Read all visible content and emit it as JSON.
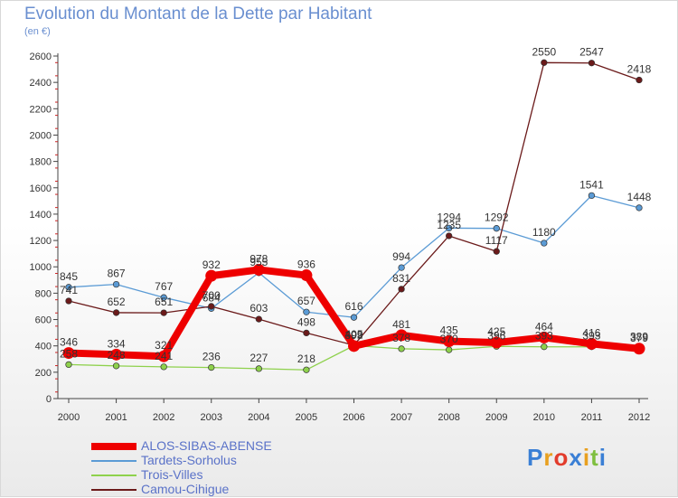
{
  "header": {
    "title": "Evolution du Montant de la Dette par Habitant",
    "subtitle": "(en €)"
  },
  "brand": {
    "letters": [
      "P",
      "r",
      "o",
      "x",
      "i",
      "t",
      "i"
    ],
    "colors": [
      "#3a7fd5",
      "#e8a020",
      "#e23c2c",
      "#3a7fd5",
      "#e8a020",
      "#7fbf3f",
      "#3a7fd5"
    ]
  },
  "chart_data": {
    "type": "line",
    "title": "Evolution du Montant de la Dette par Habitant",
    "subtitle": "(en €)",
    "x": [
      "2000",
      "2001",
      "2002",
      "2003",
      "2004",
      "2005",
      "2006",
      "2007",
      "2008",
      "2009",
      "2010",
      "2011",
      "2012"
    ],
    "ylim": [
      0,
      2600
    ],
    "y_ticks": [
      0,
      200,
      400,
      600,
      800,
      1000,
      1200,
      1400,
      1600,
      1800,
      2000,
      2200,
      2400,
      2600
    ],
    "grid": false,
    "legend_position": "bottom-left",
    "series": [
      {
        "name": "ALOS-SIBAS-ABENSE",
        "color": "#ee0000",
        "values": [
          346,
          334,
          321,
          932,
          978,
          936,
          399,
          481,
          435,
          425,
          464,
          416,
          379
        ]
      },
      {
        "name": "Tardets-Sorholus",
        "color": "#5b9bd5",
        "values": [
          845,
          867,
          767,
          684,
          955,
          657,
          616,
          994,
          1294,
          1292,
          1180,
          1541,
          1448
        ]
      },
      {
        "name": "Trois-Villes",
        "color": "#8ed14c",
        "values": [
          258,
          248,
          241,
          236,
          227,
          218,
          402,
          378,
          370,
          396,
          393,
          393,
          389
        ]
      },
      {
        "name": "Camou-Cihigue",
        "color": "#6b1a1a",
        "values": [
          741,
          652,
          651,
          700,
          603,
          498,
          405,
          831,
          1235,
          1117,
          2550,
          2547,
          2418
        ]
      }
    ],
    "data_labels": [
      [
        346,
        334,
        321,
        932,
        978,
        936,
        399,
        481,
        435,
        425,
        464,
        416,
        379
      ],
      [
        845,
        867,
        767,
        684,
        955,
        657,
        616,
        994,
        1294,
        1292,
        1180,
        1541,
        1448
      ],
      [
        258,
        248,
        241,
        236,
        227,
        218,
        402,
        378,
        370,
        396,
        393,
        393,
        389
      ],
      [
        741,
        652,
        651,
        700,
        603,
        498,
        405,
        831,
        1235,
        1117,
        2550,
        2547,
        2418
      ]
    ]
  }
}
